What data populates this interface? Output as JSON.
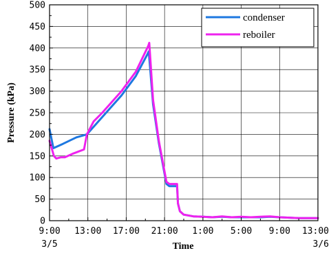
{
  "chart_data": {
    "type": "line",
    "xlabel": "Time",
    "ylabel": "Pressure (kPa)",
    "ylim": [
      0,
      500
    ],
    "y_ticks": [
      "0",
      "50",
      "100",
      "150",
      "200",
      "250",
      "300",
      "350",
      "400",
      "450",
      "500"
    ],
    "x_ticks": [
      "9:00",
      "13:00",
      "17:00",
      "21:00",
      "1:00",
      "5:00",
      "9:00",
      "13:00"
    ],
    "x_tick_hours": [
      0,
      4,
      8,
      12,
      16,
      20,
      24,
      28
    ],
    "x_date_labels": [
      {
        "hour": 0,
        "text": "3/5"
      },
      {
        "hour": 28,
        "text": "3/6"
      }
    ],
    "xlim_hours": [
      0,
      28
    ],
    "grid": true,
    "legend": "top-right",
    "series": [
      {
        "name": "condenser",
        "color": "#1e78e0",
        "x_hours": [
          0,
          0.4,
          1.4,
          2.8,
          3.9,
          5.5,
          7.5,
          9.0,
          10.2,
          10.35,
          10.8,
          11.4,
          11.9,
          12.2,
          12.5,
          12.9,
          13.3,
          13.4,
          13.6,
          14.0,
          15.0,
          16.0,
          17.0,
          18.0,
          19.0,
          20.0,
          21.0,
          22.0,
          23.0,
          24.0,
          25.0,
          26.0,
          27.0,
          28.0
        ],
        "values": [
          212,
          168,
          178,
          193,
          200,
          240,
          290,
          335,
          385,
          392,
          270,
          180,
          120,
          85,
          80,
          80,
          80,
          40,
          22,
          14,
          10,
          9,
          8,
          9,
          8,
          8,
          8,
          8,
          9,
          8,
          7,
          6,
          6,
          6
        ]
      },
      {
        "name": "reboiler",
        "color": "#ee22ee",
        "x_hours": [
          0,
          0.45,
          0.7,
          1.2,
          1.6,
          2.4,
          3.6,
          3.9,
          4.6,
          5.5,
          7.5,
          9.0,
          10.3,
          10.4,
          10.8,
          11.4,
          11.9,
          12.2,
          12.5,
          12.9,
          13.3,
          13.4,
          13.6,
          14.0,
          15.0,
          16.0,
          17.0,
          18.0,
          19.0,
          20.0,
          21.0,
          22.0,
          23.0,
          24.0,
          25.0,
          26.0,
          27.0,
          28.0
        ],
        "values": [
          185,
          150,
          144,
          147,
          147,
          155,
          165,
          200,
          230,
          250,
          300,
          345,
          405,
          412,
          280,
          185,
          125,
          90,
          85,
          85,
          85,
          40,
          22,
          14,
          10,
          9,
          8,
          10,
          8,
          9,
          8,
          9,
          10,
          8,
          7,
          6,
          6,
          6
        ]
      }
    ]
  }
}
